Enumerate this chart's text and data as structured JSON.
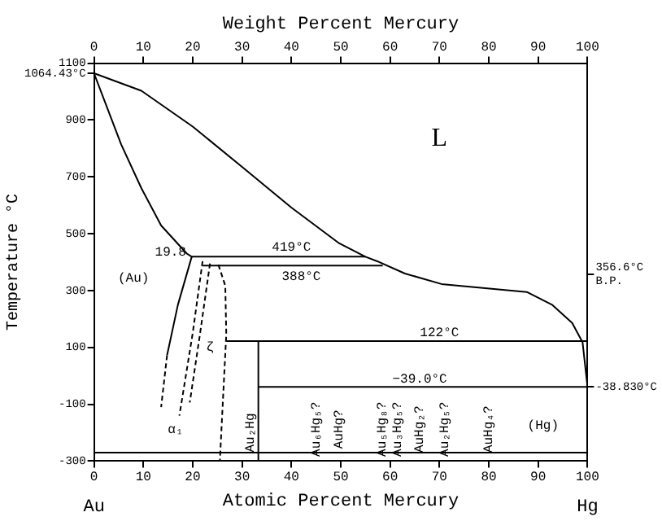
{
  "chart_data": {
    "type": "line",
    "xlabel": "Atomic Percent Mercury",
    "x2label": "Weight Percent Mercury",
    "ylabel": "Temperature °C",
    "xlim": [
      0,
      100
    ],
    "xticks": [
      0,
      10,
      20,
      30,
      40,
      50,
      60,
      70,
      80,
      90,
      100
    ],
    "x2lim": [
      0,
      100
    ],
    "x2ticks": [
      0,
      10,
      20,
      30,
      40,
      50,
      60,
      70,
      80,
      90,
      100
    ],
    "ylim": [
      -300,
      1100
    ],
    "yticks": [
      -300,
      -100,
      100,
      300,
      500,
      700,
      900,
      {
        "value": 1064.43,
        "label": "1064.43°C"
      },
      1100
    ],
    "y2lim": [
      -300,
      1100
    ],
    "y2ticks": [
      {
        "value": -38.83,
        "label": "-38.830°C"
      },
      {
        "value": 356.6,
        "label": "356.6°C\nB.P."
      }
    ],
    "grid": false,
    "legend": false,
    "marker": "none",
    "series": [
      {
        "type": "line",
        "color": "#000000",
        "line_style": "solid",
        "x": [
          0,
          9.6,
          20,
          30,
          40,
          49.7,
          55,
          57.4,
          63,
          70.4,
          80.6,
          87.7,
          92.9,
          96.9,
          99,
          100
        ],
        "values": [
          1064.43,
          1003,
          877,
          735,
          592,
          466,
          419,
          403,
          360,
          323,
          306,
          295,
          249,
          186,
          118,
          -38.83
        ]
      },
      {
        "type": "line",
        "color": "#000000",
        "line_style": "solid",
        "x": [
          0,
          5.5,
          9.6,
          13.6,
          18.8,
          19.8,
          17,
          14.8
        ],
        "values": [
          1064.43,
          814,
          660,
          529,
          430,
          419,
          250,
          72
        ]
      },
      {
        "type": "line",
        "color": "#000000",
        "line_style": "dashed",
        "x": [
          14.8,
          13.6
        ],
        "values": [
          72,
          -110
        ]
      },
      {
        "type": "line",
        "color": "#000000",
        "line_style": "solid",
        "x": [
          19.8,
          55
        ],
        "values": [
          419,
          419
        ]
      },
      {
        "type": "line",
        "color": "#000000",
        "line_style": "solid",
        "x": [
          22,
          58.5
        ],
        "values": [
          388,
          388
        ]
      },
      {
        "type": "line",
        "color": "#000000",
        "line_style": "dashed",
        "x": [
          22,
          20,
          17.3
        ],
        "values": [
          403,
          150,
          -140
        ]
      },
      {
        "type": "line",
        "color": "#000000",
        "line_style": "dashed",
        "x": [
          23.5,
          21.5,
          19.4
        ],
        "values": [
          395,
          150,
          -94
        ]
      },
      {
        "type": "line",
        "color": "#000000",
        "line_style": "dashed",
        "x": [
          25.2,
          26.6,
          26.8,
          25.5
        ],
        "values": [
          391,
          317,
          146,
          -300
        ]
      },
      {
        "type": "line",
        "color": "#000000",
        "line_style": "solid",
        "x": [
          26.8,
          100
        ],
        "values": [
          122,
          122
        ]
      },
      {
        "type": "line",
        "color": "#000000",
        "line_style": "solid",
        "x": [
          33.3,
          33.3
        ],
        "values": [
          -300,
          122
        ]
      },
      {
        "type": "line",
        "color": "#000000",
        "line_style": "solid",
        "x": [
          33.3,
          100
        ],
        "values": [
          -39,
          -39
        ]
      },
      {
        "type": "line",
        "color": "#000000",
        "line_style": "solid",
        "x": [
          0,
          100
        ],
        "values": [
          -270,
          -270
        ]
      }
    ],
    "annotations": [
      {
        "text": "19.8",
        "x": 19.8,
        "y": 419
      },
      {
        "text": "419°C",
        "x": 40,
        "y": 419
      },
      {
        "text": "388°C",
        "x": 42,
        "y": 388
      },
      {
        "text": "122°C",
        "x": 70,
        "y": 122
      },
      {
        "text": "−39.0°C",
        "x": 66,
        "y": -39
      },
      {
        "text": "Au₂Hg",
        "x": 33.3,
        "y": -200
      },
      "L",
      "(Au)",
      "ζ",
      "α₁",
      "Au₆Hg₅?",
      "AuHg?",
      "Au₅Hg₈?",
      "Au₃Hg₅?",
      "AuHg₂?",
      "Au₂Hg₅?",
      "AuHg₄?",
      "(Hg)",
      "Au",
      "Hg"
    ]
  }
}
